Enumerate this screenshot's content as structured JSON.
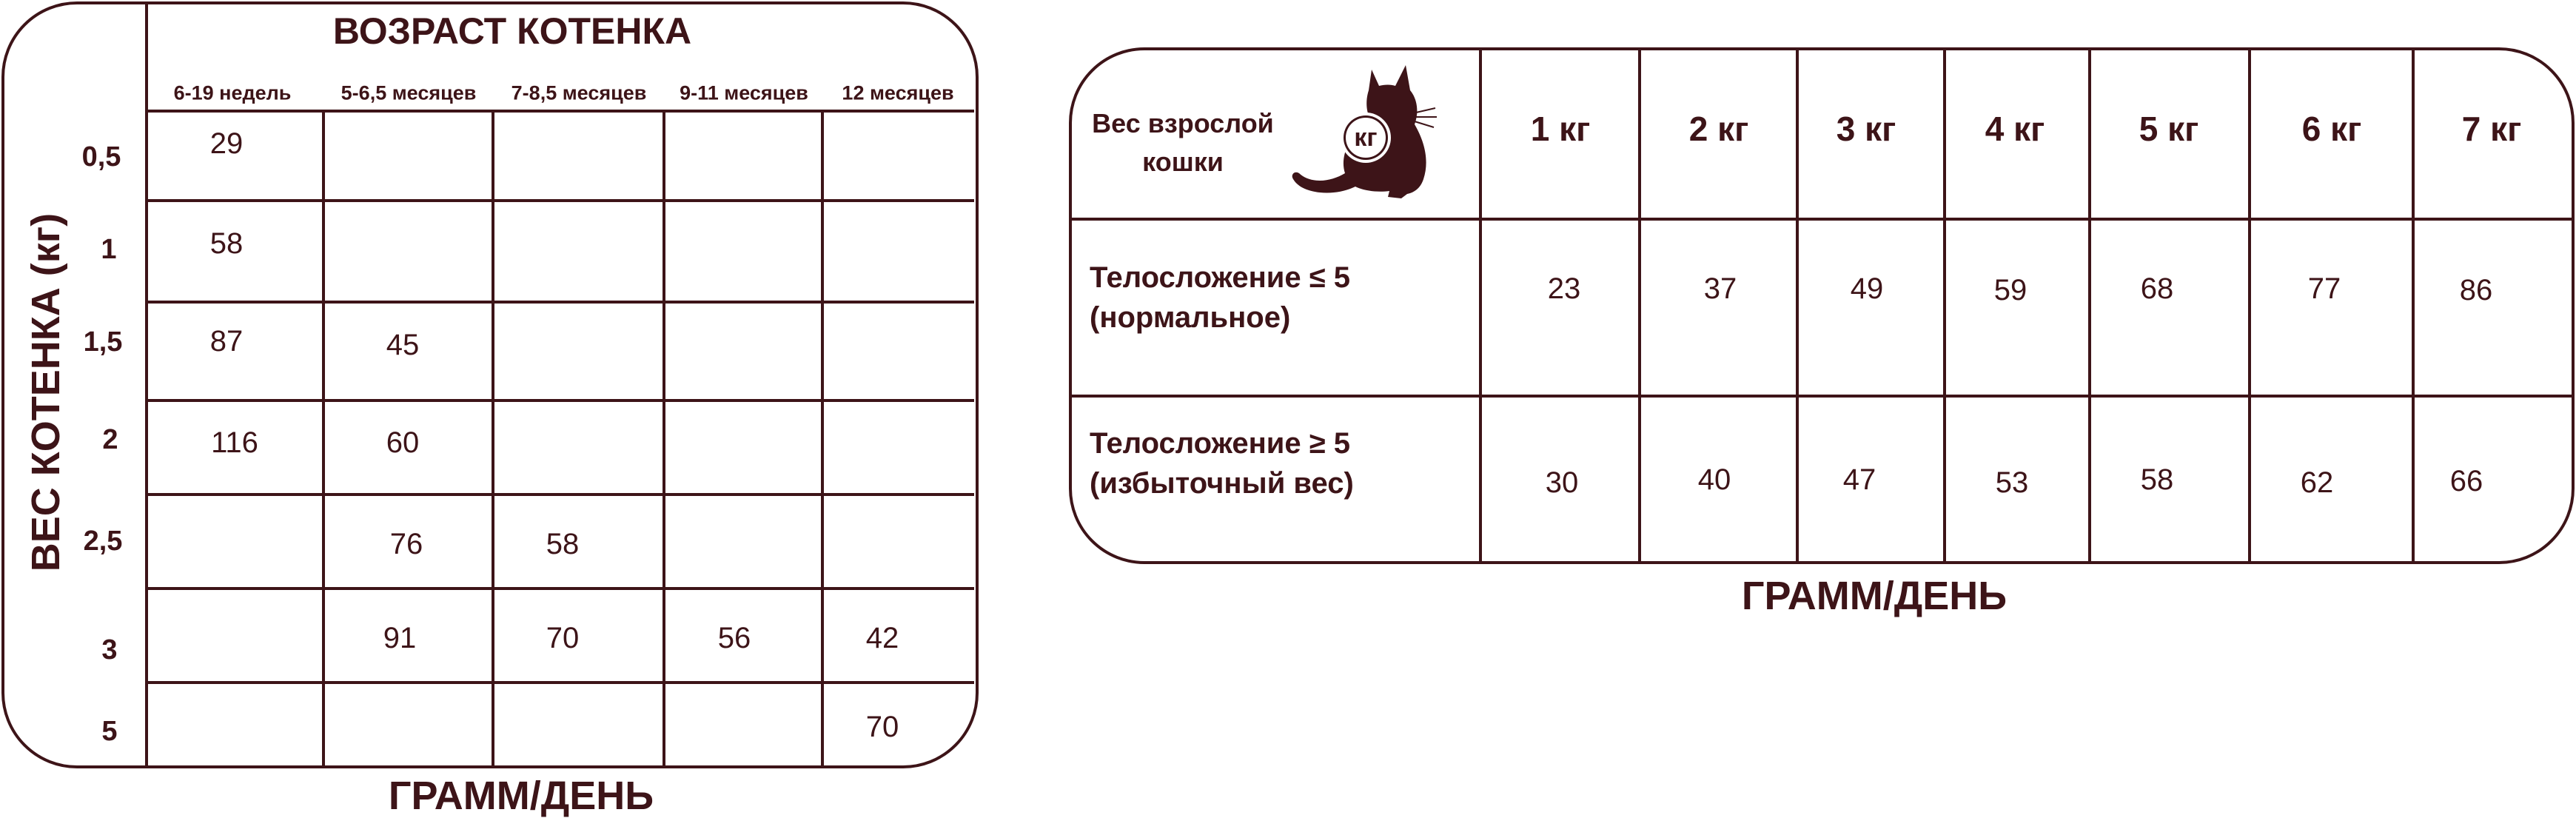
{
  "kitten_table": {
    "title": "ВОЗРАСТ КОТЕНКА",
    "side_label": "ВЕС КОТЕНКА (кг)",
    "columns": [
      "6-19 недель",
      "5-6,5 месяцев",
      "7-8,5 месяцев",
      "9-11 месяцев",
      "12 месяцев"
    ],
    "rows": [
      {
        "weight": "0,5",
        "cells": [
          "29",
          "",
          "",
          "",
          ""
        ]
      },
      {
        "weight": "1",
        "cells": [
          "58",
          "",
          "",
          "",
          ""
        ]
      },
      {
        "weight": "1,5",
        "cells": [
          "87",
          "45",
          "",
          "",
          ""
        ]
      },
      {
        "weight": "2",
        "cells": [
          "116",
          "60",
          "",
          "",
          ""
        ]
      },
      {
        "weight": "2,5",
        "cells": [
          "",
          "76",
          "58",
          "",
          ""
        ]
      },
      {
        "weight": "3",
        "cells": [
          "",
          "91",
          "70",
          "56",
          "42"
        ]
      },
      {
        "weight": "5",
        "cells": [
          "",
          "",
          "",
          "",
          "70"
        ]
      }
    ],
    "footer": "ГРАММ/ДЕНЬ"
  },
  "adult_table": {
    "header_label": "Вес взрослой кошки",
    "badge": "кг",
    "columns": [
      "1 кг",
      "2 кг",
      "3 кг",
      "4 кг",
      "5 кг",
      "6 кг",
      "7 кг"
    ],
    "rows": [
      {
        "label": "Телосложение ≤ 5 (нормальное)",
        "cells": [
          "23",
          "37",
          "49",
          "59",
          "68",
          "77",
          "86"
        ]
      },
      {
        "label": "Телосложение ≥ 5 (избыточный вес)",
        "cells": [
          "30",
          "40",
          "47",
          "53",
          "58",
          "62",
          "66"
        ]
      }
    ],
    "footer": "ГРАММ/ДЕНЬ"
  },
  "colors": {
    "ink": "#3d1418",
    "cat": "#3d1418",
    "background": "#ffffff"
  }
}
